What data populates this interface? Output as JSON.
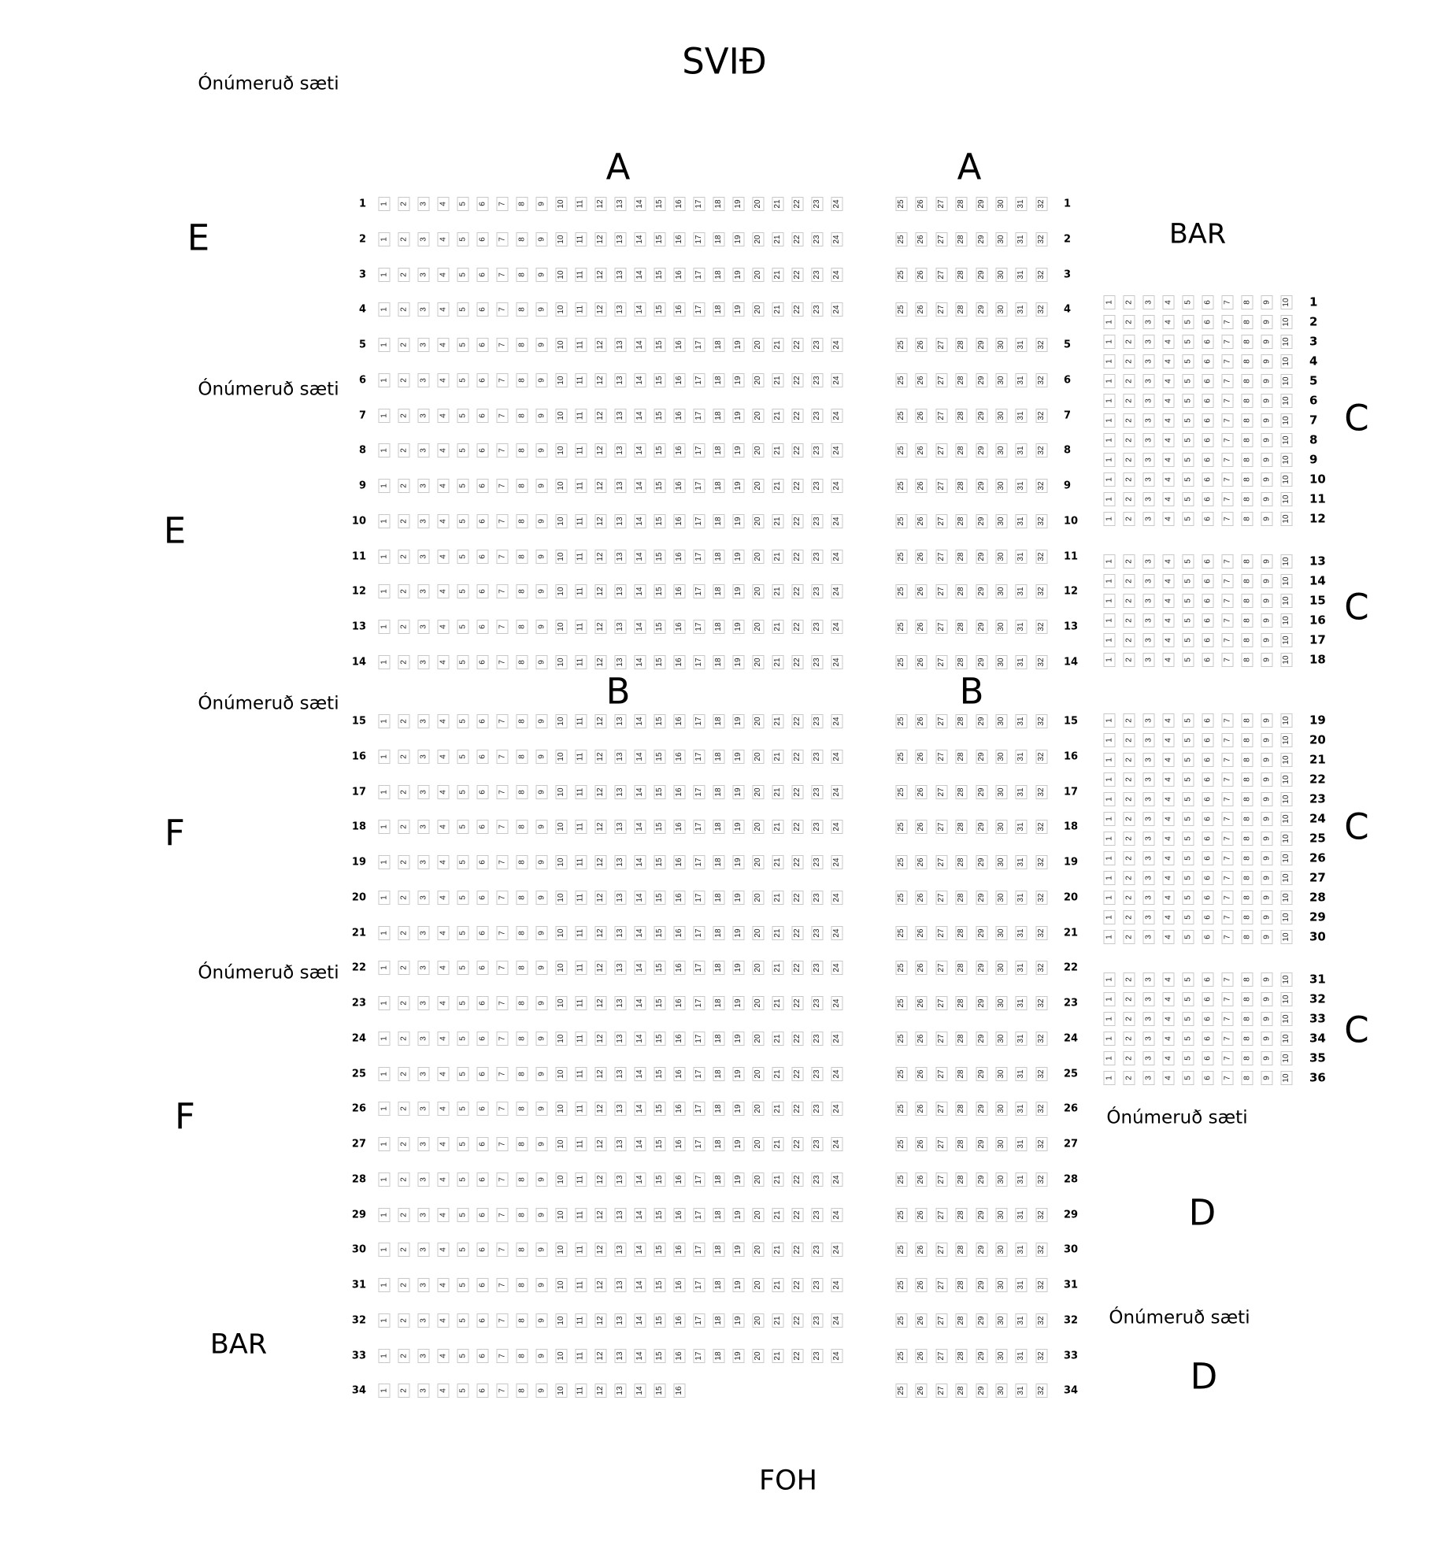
{
  "stage_label": "SVIÐ",
  "foh_label": "FOH",
  "bar_labels": [
    "BAR",
    "BAR"
  ],
  "unnumbered_label": "Ónúmeruð sæti",
  "section_labels": {
    "A": [
      "A",
      "A"
    ],
    "B": [
      "B",
      "B"
    ],
    "C": [
      "C",
      "C",
      "C",
      "C"
    ],
    "D": [
      "D",
      "D"
    ],
    "E": [
      "E",
      "E"
    ],
    "F": [
      "F",
      "F"
    ]
  },
  "main_rows": [
    {
      "row": "1",
      "left": [
        1,
        24
      ],
      "right": [
        25,
        32
      ]
    },
    {
      "row": "2",
      "left": [
        1,
        24
      ],
      "right": [
        25,
        32
      ]
    },
    {
      "row": "3",
      "left": [
        1,
        24
      ],
      "right": [
        25,
        32
      ]
    },
    {
      "row": "4",
      "left": [
        1,
        24
      ],
      "right": [
        25,
        32
      ]
    },
    {
      "row": "5",
      "left": [
        1,
        24
      ],
      "right": [
        25,
        32
      ]
    },
    {
      "row": "6",
      "left": [
        1,
        24
      ],
      "right": [
        25,
        32
      ]
    },
    {
      "row": "7",
      "left": [
        1,
        24
      ],
      "right": [
        25,
        32
      ]
    },
    {
      "row": "8",
      "left": [
        1,
        24
      ],
      "right": [
        25,
        32
      ]
    },
    {
      "row": "9",
      "left": [
        1,
        24
      ],
      "right": [
        25,
        32
      ]
    },
    {
      "row": "10",
      "left": [
        1,
        24
      ],
      "right": [
        25,
        32
      ]
    },
    {
      "row": "11",
      "left": [
        1,
        24
      ],
      "right": [
        25,
        32
      ]
    },
    {
      "row": "12",
      "left": [
        1,
        24
      ],
      "right": [
        25,
        32
      ]
    },
    {
      "row": "13",
      "left": [
        1,
        24
      ],
      "right": [
        25,
        32
      ]
    },
    {
      "row": "14",
      "left": [
        1,
        24
      ],
      "right": [
        25,
        32
      ]
    },
    {
      "row": "15",
      "left": [
        1,
        24
      ],
      "right": [
        25,
        32
      ]
    },
    {
      "row": "16",
      "left": [
        1,
        24
      ],
      "right": [
        25,
        32
      ]
    },
    {
      "row": "17",
      "left": [
        1,
        24
      ],
      "right": [
        25,
        32
      ]
    },
    {
      "row": "18",
      "left": [
        1,
        24
      ],
      "right": [
        25,
        32
      ]
    },
    {
      "row": "19",
      "left": [
        1,
        24
      ],
      "right": [
        25,
        32
      ]
    },
    {
      "row": "20",
      "left": [
        1,
        24
      ],
      "right": [
        25,
        32
      ]
    },
    {
      "row": "21",
      "left": [
        1,
        24
      ],
      "right": [
        25,
        32
      ]
    },
    {
      "row": "22",
      "left": [
        1,
        24
      ],
      "right": [
        25,
        32
      ]
    },
    {
      "row": "23",
      "left": [
        1,
        24
      ],
      "right": [
        25,
        32
      ]
    },
    {
      "row": "24",
      "left": [
        1,
        24
      ],
      "right": [
        25,
        32
      ]
    },
    {
      "row": "25",
      "left": [
        1,
        24
      ],
      "right": [
        25,
        32
      ]
    },
    {
      "row": "26",
      "left": [
        1,
        24
      ],
      "right": [
        25,
        32
      ]
    },
    {
      "row": "27",
      "left": [
        1,
        24
      ],
      "right": [
        25,
        32
      ]
    },
    {
      "row": "28",
      "left": [
        1,
        24
      ],
      "right": [
        25,
        32
      ]
    },
    {
      "row": "29",
      "left": [
        1,
        24
      ],
      "right": [
        25,
        32
      ]
    },
    {
      "row": "30",
      "left": [
        1,
        24
      ],
      "right": [
        25,
        32
      ]
    },
    {
      "row": "31",
      "left": [
        1,
        24
      ],
      "right": [
        25,
        32
      ]
    },
    {
      "row": "32",
      "left": [
        1,
        24
      ],
      "right": [
        25,
        32
      ]
    },
    {
      "row": "33",
      "left": [
        1,
        24
      ],
      "right": [
        25,
        32
      ]
    },
    {
      "row": "34",
      "left": [
        1,
        16
      ],
      "right": [
        25,
        32
      ]
    }
  ],
  "c_blocks": [
    {
      "rows": [
        1,
        12
      ],
      "seats": [
        1,
        10
      ]
    },
    {
      "rows": [
        13,
        18
      ],
      "seats": [
        1,
        10
      ]
    },
    {
      "rows": [
        19,
        30
      ],
      "seats": [
        1,
        10
      ]
    },
    {
      "rows": [
        31,
        36
      ],
      "seats": [
        1,
        10
      ]
    }
  ]
}
